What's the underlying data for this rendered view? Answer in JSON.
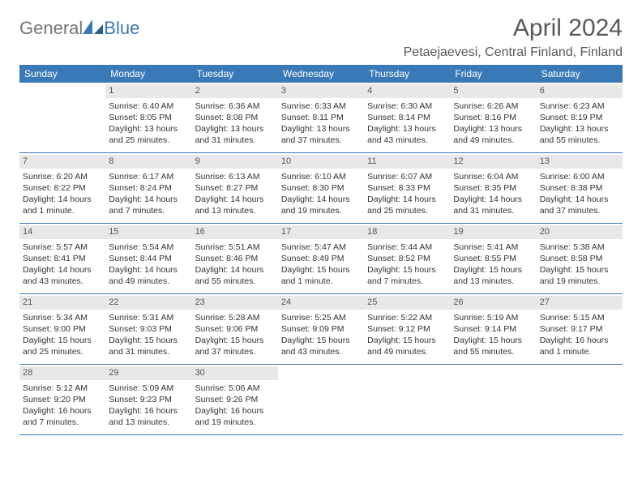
{
  "logo": {
    "part1": "General",
    "part2": "Blue"
  },
  "title": "April 2024",
  "location": "Petaejaevesi, Central Finland, Finland",
  "colors": {
    "header_bg": "#3a79b7",
    "daynum_bg": "#e8e8e8",
    "text": "#333333",
    "title": "#595959"
  },
  "dayNames": [
    "Sunday",
    "Monday",
    "Tuesday",
    "Wednesday",
    "Thursday",
    "Friday",
    "Saturday"
  ],
  "weeks": [
    [
      {
        "n": "",
        "sr": "",
        "ss": "",
        "dl": ""
      },
      {
        "n": "1",
        "sr": "Sunrise: 6:40 AM",
        "ss": "Sunset: 8:05 PM",
        "dl": "Daylight: 13 hours and 25 minutes."
      },
      {
        "n": "2",
        "sr": "Sunrise: 6:36 AM",
        "ss": "Sunset: 8:08 PM",
        "dl": "Daylight: 13 hours and 31 minutes."
      },
      {
        "n": "3",
        "sr": "Sunrise: 6:33 AM",
        "ss": "Sunset: 8:11 PM",
        "dl": "Daylight: 13 hours and 37 minutes."
      },
      {
        "n": "4",
        "sr": "Sunrise: 6:30 AM",
        "ss": "Sunset: 8:14 PM",
        "dl": "Daylight: 13 hours and 43 minutes."
      },
      {
        "n": "5",
        "sr": "Sunrise: 6:26 AM",
        "ss": "Sunset: 8:16 PM",
        "dl": "Daylight: 13 hours and 49 minutes."
      },
      {
        "n": "6",
        "sr": "Sunrise: 6:23 AM",
        "ss": "Sunset: 8:19 PM",
        "dl": "Daylight: 13 hours and 55 minutes."
      }
    ],
    [
      {
        "n": "7",
        "sr": "Sunrise: 6:20 AM",
        "ss": "Sunset: 8:22 PM",
        "dl": "Daylight: 14 hours and 1 minute."
      },
      {
        "n": "8",
        "sr": "Sunrise: 6:17 AM",
        "ss": "Sunset: 8:24 PM",
        "dl": "Daylight: 14 hours and 7 minutes."
      },
      {
        "n": "9",
        "sr": "Sunrise: 6:13 AM",
        "ss": "Sunset: 8:27 PM",
        "dl": "Daylight: 14 hours and 13 minutes."
      },
      {
        "n": "10",
        "sr": "Sunrise: 6:10 AM",
        "ss": "Sunset: 8:30 PM",
        "dl": "Daylight: 14 hours and 19 minutes."
      },
      {
        "n": "11",
        "sr": "Sunrise: 6:07 AM",
        "ss": "Sunset: 8:33 PM",
        "dl": "Daylight: 14 hours and 25 minutes."
      },
      {
        "n": "12",
        "sr": "Sunrise: 6:04 AM",
        "ss": "Sunset: 8:35 PM",
        "dl": "Daylight: 14 hours and 31 minutes."
      },
      {
        "n": "13",
        "sr": "Sunrise: 6:00 AM",
        "ss": "Sunset: 8:38 PM",
        "dl": "Daylight: 14 hours and 37 minutes."
      }
    ],
    [
      {
        "n": "14",
        "sr": "Sunrise: 5:57 AM",
        "ss": "Sunset: 8:41 PM",
        "dl": "Daylight: 14 hours and 43 minutes."
      },
      {
        "n": "15",
        "sr": "Sunrise: 5:54 AM",
        "ss": "Sunset: 8:44 PM",
        "dl": "Daylight: 14 hours and 49 minutes."
      },
      {
        "n": "16",
        "sr": "Sunrise: 5:51 AM",
        "ss": "Sunset: 8:46 PM",
        "dl": "Daylight: 14 hours and 55 minutes."
      },
      {
        "n": "17",
        "sr": "Sunrise: 5:47 AM",
        "ss": "Sunset: 8:49 PM",
        "dl": "Daylight: 15 hours and 1 minute."
      },
      {
        "n": "18",
        "sr": "Sunrise: 5:44 AM",
        "ss": "Sunset: 8:52 PM",
        "dl": "Daylight: 15 hours and 7 minutes."
      },
      {
        "n": "19",
        "sr": "Sunrise: 5:41 AM",
        "ss": "Sunset: 8:55 PM",
        "dl": "Daylight: 15 hours and 13 minutes."
      },
      {
        "n": "20",
        "sr": "Sunrise: 5:38 AM",
        "ss": "Sunset: 8:58 PM",
        "dl": "Daylight: 15 hours and 19 minutes."
      }
    ],
    [
      {
        "n": "21",
        "sr": "Sunrise: 5:34 AM",
        "ss": "Sunset: 9:00 PM",
        "dl": "Daylight: 15 hours and 25 minutes."
      },
      {
        "n": "22",
        "sr": "Sunrise: 5:31 AM",
        "ss": "Sunset: 9:03 PM",
        "dl": "Daylight: 15 hours and 31 minutes."
      },
      {
        "n": "23",
        "sr": "Sunrise: 5:28 AM",
        "ss": "Sunset: 9:06 PM",
        "dl": "Daylight: 15 hours and 37 minutes."
      },
      {
        "n": "24",
        "sr": "Sunrise: 5:25 AM",
        "ss": "Sunset: 9:09 PM",
        "dl": "Daylight: 15 hours and 43 minutes."
      },
      {
        "n": "25",
        "sr": "Sunrise: 5:22 AM",
        "ss": "Sunset: 9:12 PM",
        "dl": "Daylight: 15 hours and 49 minutes."
      },
      {
        "n": "26",
        "sr": "Sunrise: 5:19 AM",
        "ss": "Sunset: 9:14 PM",
        "dl": "Daylight: 15 hours and 55 minutes."
      },
      {
        "n": "27",
        "sr": "Sunrise: 5:15 AM",
        "ss": "Sunset: 9:17 PM",
        "dl": "Daylight: 16 hours and 1 minute."
      }
    ],
    [
      {
        "n": "28",
        "sr": "Sunrise: 5:12 AM",
        "ss": "Sunset: 9:20 PM",
        "dl": "Daylight: 16 hours and 7 minutes."
      },
      {
        "n": "29",
        "sr": "Sunrise: 5:09 AM",
        "ss": "Sunset: 9:23 PM",
        "dl": "Daylight: 16 hours and 13 minutes."
      },
      {
        "n": "30",
        "sr": "Sunrise: 5:06 AM",
        "ss": "Sunset: 9:26 PM",
        "dl": "Daylight: 16 hours and 19 minutes."
      },
      {
        "n": "",
        "sr": "",
        "ss": "",
        "dl": ""
      },
      {
        "n": "",
        "sr": "",
        "ss": "",
        "dl": ""
      },
      {
        "n": "",
        "sr": "",
        "ss": "",
        "dl": ""
      },
      {
        "n": "",
        "sr": "",
        "ss": "",
        "dl": ""
      }
    ]
  ]
}
